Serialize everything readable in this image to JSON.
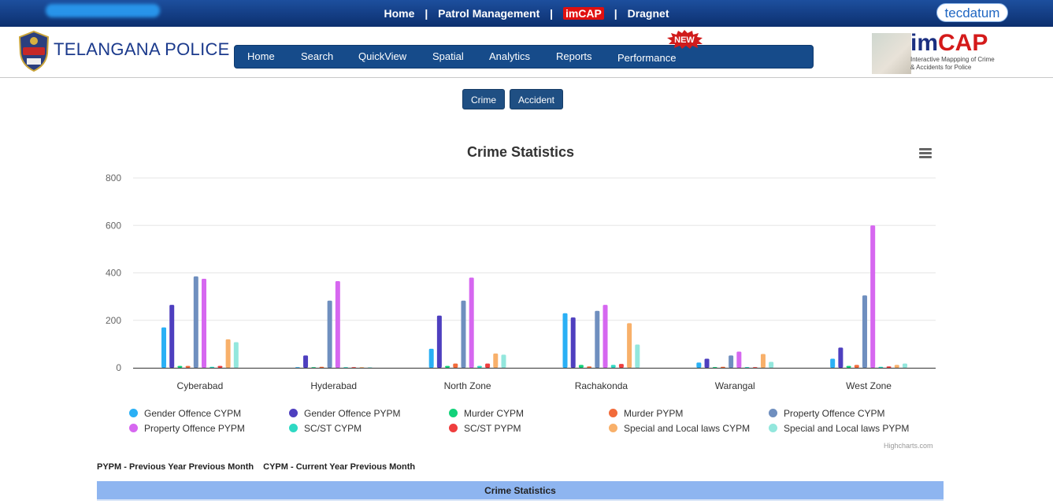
{
  "topbar": {
    "links": [
      "Home",
      "Patrol Management",
      "imCAP",
      "Dragnet"
    ],
    "separator": "|",
    "partner_logo": "tecdatum"
  },
  "header": {
    "brand": "TELANGANA POLICE",
    "badge_text": "TELANGANA POLICE",
    "nav": [
      "Home",
      "Search",
      "QuickView",
      "Spatial",
      "Analytics",
      "Reports",
      "Performance"
    ],
    "new_badge": "NEW",
    "imcap_title_prefix": "im",
    "imcap_title_suffix": "CAP",
    "imcap_subtitle": "Interactive Mappping of Crime & Accidents for Police"
  },
  "buttons": {
    "crime": "Crime",
    "accident": "Accident"
  },
  "chart_data": {
    "type": "bar",
    "title": "Crime Statistics",
    "categories": [
      "Cyberabad",
      "Hyderabad",
      "North Zone",
      "Rachakonda",
      "Warangal",
      "West Zone"
    ],
    "ylim": [
      0,
      800
    ],
    "yticks": [
      0,
      200,
      400,
      600,
      800
    ],
    "grid": true,
    "legend": "bottom",
    "series": [
      {
        "name": "Gender Offence CYPM",
        "color": "#2ab0f5",
        "values": [
          170,
          2,
          80,
          230,
          22,
          38
        ]
      },
      {
        "name": "Gender Offence PYPM",
        "color": "#4e3fbf",
        "values": [
          265,
          52,
          220,
          212,
          38,
          85
        ]
      },
      {
        "name": "Murder CYPM",
        "color": "#12d27a",
        "values": [
          8,
          1,
          8,
          12,
          3,
          8
        ]
      },
      {
        "name": "Murder PYPM",
        "color": "#f26b3a",
        "values": [
          8,
          4,
          18,
          6,
          4,
          12
        ]
      },
      {
        "name": "Property Offence CYPM",
        "color": "#6f8fbf",
        "values": [
          385,
          283,
          283,
          240,
          52,
          305
        ]
      },
      {
        "name": "Property Offence PYPM",
        "color": "#d667f0",
        "values": [
          375,
          365,
          380,
          265,
          68,
          600
        ]
      },
      {
        "name": "SC/ST CYPM",
        "color": "#2ed9c3",
        "values": [
          4,
          1,
          8,
          12,
          3,
          4
        ]
      },
      {
        "name": "SC/ST PYPM",
        "color": "#ef3e3e",
        "values": [
          8,
          1,
          18,
          16,
          2,
          6
        ]
      },
      {
        "name": "Special and Local laws CYPM",
        "color": "#f8b06a",
        "values": [
          120,
          2,
          60,
          188,
          58,
          12
        ]
      },
      {
        "name": "Special and Local laws PYPM",
        "color": "#93e7dd",
        "values": [
          108,
          1,
          55,
          98,
          25,
          18
        ]
      }
    ]
  },
  "credits": "Highcharts.com",
  "notes": [
    "PYPM - Previous Year Previous Month",
    "CYPM - Current Year Previous Month"
  ],
  "table": {
    "title": "Crime Statistics"
  },
  "icons": {
    "menu": "hamburger-menu-icon",
    "badge": "police-badge-icon"
  }
}
